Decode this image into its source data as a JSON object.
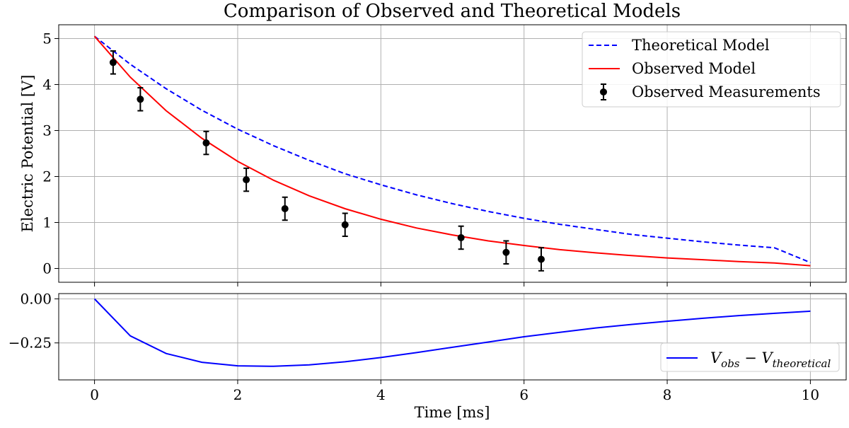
{
  "chart_data": [
    {
      "type": "line",
      "title": "Comparison of Observed and Theoretical Models",
      "xlabel": "",
      "ylabel": "Electric Potential [V]",
      "xlim": [
        -0.5,
        10.5
      ],
      "ylim": [
        -0.3,
        5.3
      ],
      "xticks": [
        0,
        2,
        4,
        6,
        8,
        10
      ],
      "yticks": [
        0,
        1,
        2,
        3,
        4,
        5
      ],
      "grid": true,
      "legend_position": "top-right",
      "series": [
        {
          "name": "Theoretical Model",
          "style": "dashed",
          "color": "#0000ff",
          "x": [
            0,
            0.5,
            1,
            1.5,
            2,
            2.5,
            3,
            3.5,
            4,
            4.5,
            5,
            5.5,
            6,
            6.5,
            7,
            7.5,
            8,
            8.5,
            9,
            9.5,
            10
          ],
          "y": [
            5.05,
            4.44,
            3.91,
            3.44,
            3.03,
            2.67,
            2.35,
            2.06,
            1.82,
            1.6,
            1.41,
            1.24,
            1.09,
            0.96,
            0.85,
            0.74,
            0.66,
            0.58,
            0.51,
            0.45,
            0.13
          ]
        },
        {
          "name": "Observed Model",
          "style": "solid",
          "color": "#ff0000",
          "x": [
            0,
            0.5,
            1,
            1.5,
            2,
            2.5,
            3,
            3.5,
            4,
            4.5,
            5,
            5.5,
            6,
            6.5,
            7,
            7.5,
            8,
            8.5,
            9,
            9.5,
            10
          ],
          "y": [
            5.05,
            4.16,
            3.43,
            2.83,
            2.33,
            1.92,
            1.58,
            1.3,
            1.07,
            0.88,
            0.73,
            0.6,
            0.5,
            0.41,
            0.34,
            0.28,
            0.23,
            0.19,
            0.15,
            0.12,
            0.06
          ]
        },
        {
          "name": "Observed Measurements",
          "style": "errorbar",
          "color": "#000000",
          "x": [
            0.26,
            0.64,
            1.56,
            2.12,
            2.66,
            3.5,
            5.12,
            5.75,
            6.24
          ],
          "y": [
            4.48,
            3.68,
            2.73,
            1.93,
            1.3,
            0.95,
            0.67,
            0.35,
            0.2
          ],
          "error": [
            0.25,
            0.25,
            0.25,
            0.25,
            0.25,
            0.25,
            0.25,
            0.25,
            0.25
          ]
        }
      ]
    },
    {
      "type": "line",
      "title": "",
      "xlabel": "Time [ms]",
      "ylabel": "",
      "xlim": [
        -0.5,
        10.5
      ],
      "ylim": [
        -0.46,
        0.03
      ],
      "xticks": [
        0,
        2,
        4,
        6,
        8,
        10
      ],
      "yticks": [
        0.0,
        -0.25
      ],
      "ytick_labels": [
        "0.00",
        "−0.25"
      ],
      "grid": true,
      "legend_position": "bottom-right",
      "legend_label_math": {
        "base1": "V",
        "sub1": "obs",
        "sep": " − ",
        "base2": "V",
        "sub2": "theoretical"
      },
      "series": [
        {
          "name": "V_obs − V_theoretical",
          "style": "solid",
          "color": "#0000ff",
          "x": [
            0,
            0.5,
            1,
            1.5,
            2,
            2.5,
            3,
            3.5,
            4,
            4.5,
            5,
            5.5,
            6,
            6.5,
            7,
            7.5,
            8,
            8.5,
            9,
            9.5,
            10
          ],
          "y": [
            0,
            -0.21,
            -0.31,
            -0.36,
            -0.38,
            -0.383,
            -0.375,
            -0.357,
            -0.333,
            -0.305,
            -0.275,
            -0.245,
            -0.215,
            -0.19,
            -0.165,
            -0.145,
            -0.127,
            -0.11,
            -0.095,
            -0.082,
            -0.07
          ]
        }
      ]
    }
  ]
}
